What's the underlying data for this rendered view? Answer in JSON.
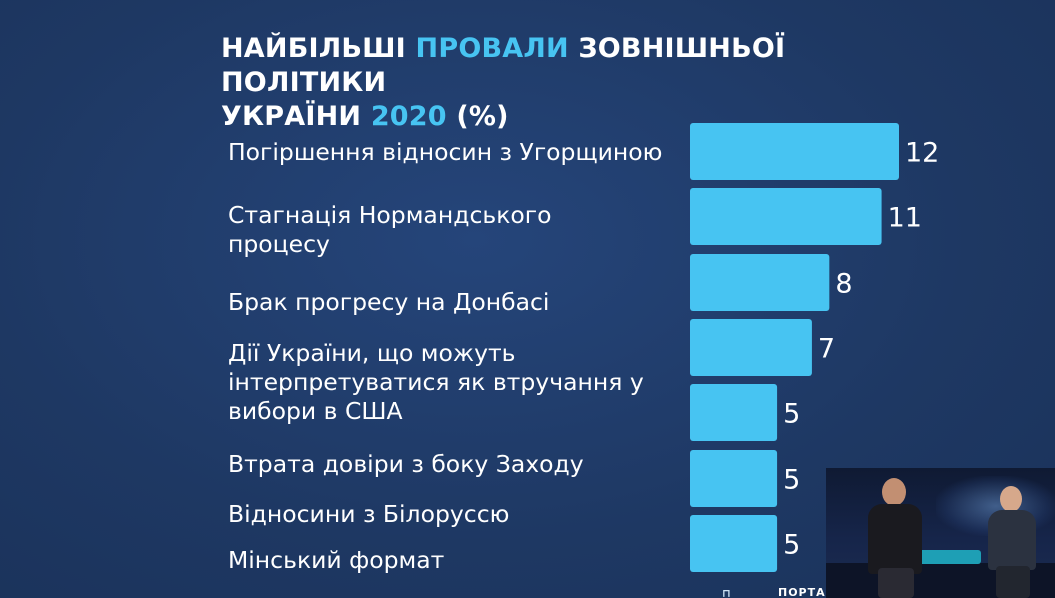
{
  "title": {
    "part1": "НАЙБІЛЬШІ ",
    "accent": "ПРОВАЛИ",
    "part2": " ЗОВНІШНЬОЇ ПОЛІТИКИ",
    "part3": "УКРАЇНИ ",
    "year": "2020",
    "part4": " (%)"
  },
  "colors": {
    "background": "#1f3a66",
    "bar": "#47c4f2",
    "accent_text": "#47c4f2",
    "text": "#ffffff"
  },
  "chart_data": {
    "type": "bar",
    "orientation": "horizontal",
    "categories": [
      [
        "Погіршення відносин з Угорщиною"
      ],
      [
        "Стагнація Нормандського",
        "процесу"
      ],
      [
        "Брак прогресу на Донбасі"
      ],
      [
        "Дії України, що можуть",
        "інтерпретуватися як втручання у",
        "вибори в США"
      ],
      [
        "Втрата довіри з боку Заходу"
      ],
      [
        "Відносини з Білоруссю"
      ],
      [
        "Мінський формат"
      ]
    ],
    "values": [
      12,
      11,
      8,
      7,
      5,
      5,
      5
    ],
    "xlim": [
      0,
      12
    ],
    "grid": false,
    "legend": "none"
  },
  "footer": {
    "logo_text": "ПОРТА"
  },
  "inset": {
    "description_icon": "video-inset"
  }
}
